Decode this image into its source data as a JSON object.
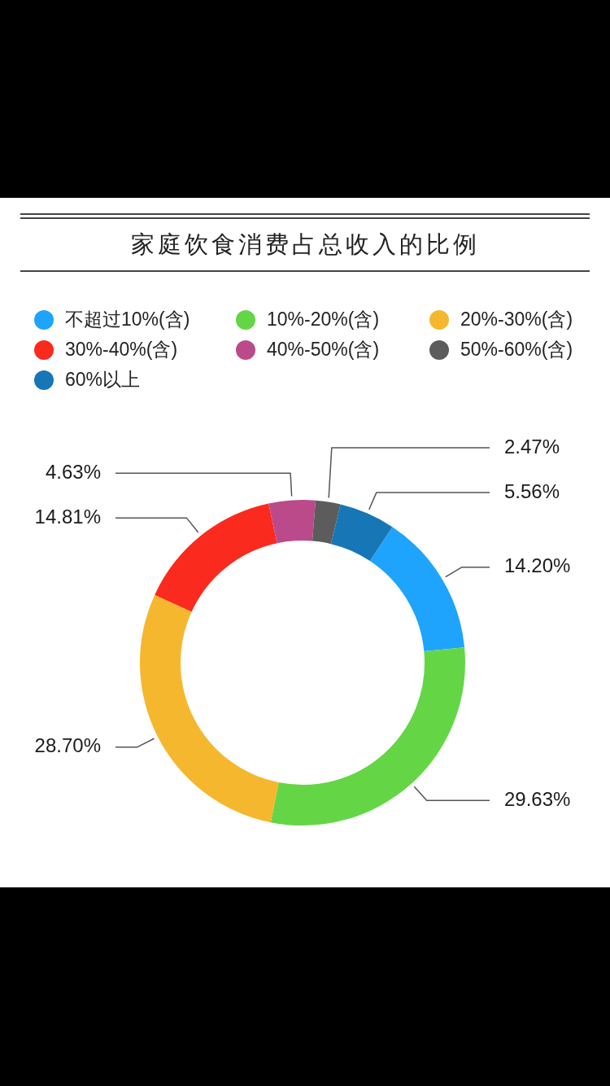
{
  "chart_data": {
    "type": "donut",
    "title": "家庭饮食消费占总收入的比例",
    "categories": [
      "不超过10%(含)",
      "10%-20%(含)",
      "20%-30%(含)",
      "30%-40%(含)",
      "40%-50%(含)",
      "50%-60%(含)",
      "60%以上"
    ],
    "values": [
      14.2,
      29.63,
      28.7,
      14.81,
      4.63,
      2.47,
      5.56
    ],
    "colors": [
      "#1ea4fc",
      "#64d645",
      "#f5b72e",
      "#fa2a1e",
      "#bb4a8a",
      "#5c5c5c",
      "#1776b6"
    ],
    "value_labels": [
      "14.20%",
      "29.63%",
      "28.70%",
      "14.81%",
      "4.63%",
      "2.47%",
      "5.56%"
    ],
    "legend": "top"
  }
}
